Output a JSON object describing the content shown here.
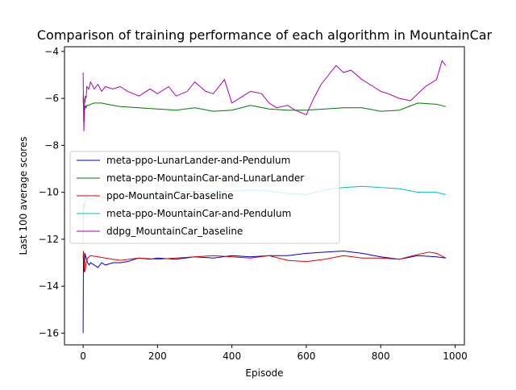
{
  "chart_data": {
    "type": "line",
    "title": "Comparison of training performance of each algorithm in MountainCar",
    "xlabel": "Episode",
    "ylabel": "Last 100 average scores",
    "xlim": [
      -50,
      1025
    ],
    "ylim": [
      -16.5,
      -3.8
    ],
    "xticks": [
      0,
      200,
      400,
      600,
      800,
      1000
    ],
    "yticks": [
      -16,
      -14,
      -12,
      -10,
      -8,
      -6,
      -4
    ],
    "grid": false,
    "legend_position": "center-left",
    "series": [
      {
        "name": "meta-ppo-LunarLander-and-Pendulum",
        "color": "#0000cc",
        "x": [
          0,
          1,
          2,
          3,
          5,
          8,
          12,
          16,
          20,
          30,
          40,
          50,
          60,
          80,
          100,
          120,
          150,
          180,
          200,
          250,
          300,
          350,
          400,
          450,
          500,
          550,
          600,
          650,
          700,
          750,
          800,
          850,
          900,
          950,
          975
        ],
        "y": [
          -16.0,
          -12.6,
          -12.8,
          -13.4,
          -12.6,
          -12.8,
          -13.0,
          -13.1,
          -13.0,
          -13.1,
          -13.2,
          -13.0,
          -13.1,
          -13.0,
          -13.0,
          -12.95,
          -12.8,
          -12.85,
          -12.8,
          -12.85,
          -12.75,
          -12.8,
          -12.7,
          -12.75,
          -12.7,
          -12.7,
          -12.6,
          -12.55,
          -12.5,
          -12.6,
          -12.75,
          -12.85,
          -12.7,
          -12.75,
          -12.8
        ]
      },
      {
        "name": "meta-ppo-MountainCar-and-LunarLander",
        "color": "#007700",
        "x": [
          0,
          1,
          2,
          3,
          4,
          6,
          8,
          10,
          15,
          20,
          30,
          50,
          80,
          100,
          150,
          200,
          250,
          300,
          350,
          400,
          450,
          500,
          550,
          600,
          650,
          700,
          750,
          800,
          850,
          900,
          950,
          975
        ],
        "y": [
          -5.9,
          -6.4,
          -6.6,
          -7.0,
          -6.5,
          -6.3,
          -6.4,
          -6.3,
          -6.3,
          -6.25,
          -6.2,
          -6.2,
          -6.3,
          -6.35,
          -6.4,
          -6.45,
          -6.5,
          -6.4,
          -6.55,
          -6.5,
          -6.3,
          -6.45,
          -6.5,
          -6.5,
          -6.45,
          -6.4,
          -6.4,
          -6.55,
          -6.5,
          -6.2,
          -6.25,
          -6.35
        ]
      },
      {
        "name": "ppo-MountainCar-baseline",
        "color": "#dd0000",
        "x": [
          0,
          1,
          2,
          3,
          4,
          6,
          8,
          12,
          20,
          40,
          60,
          80,
          100,
          150,
          200,
          250,
          300,
          350,
          400,
          450,
          500,
          550,
          600,
          650,
          700,
          750,
          800,
          850,
          900,
          930,
          950,
          975
        ],
        "y": [
          -12.8,
          -12.5,
          -12.6,
          -13.2,
          -13.4,
          -13.3,
          -13.0,
          -12.8,
          -12.7,
          -12.75,
          -12.8,
          -12.85,
          -12.9,
          -12.8,
          -12.85,
          -12.8,
          -12.75,
          -12.7,
          -12.75,
          -12.8,
          -12.7,
          -12.9,
          -12.95,
          -12.85,
          -12.7,
          -12.8,
          -12.8,
          -12.85,
          -12.65,
          -12.55,
          -12.6,
          -12.8
        ]
      },
      {
        "name": "meta-ppo-MountainCar-and-Pendulum",
        "color": "#00bbcc",
        "x": [
          0,
          1,
          2,
          3,
          5,
          10,
          20,
          40,
          60,
          80,
          100,
          150,
          200,
          250,
          300,
          350,
          400,
          450,
          500,
          550,
          600,
          650,
          700,
          750,
          800,
          850,
          900,
          950,
          975
        ],
        "y": [
          -12.2,
          -10.8,
          -10.5,
          -10.7,
          -10.3,
          -10.2,
          -10.3,
          -10.2,
          -10.25,
          -10.2,
          -10.1,
          -10.1,
          -10.05,
          -10.0,
          -9.95,
          -10.0,
          -9.95,
          -9.9,
          -9.95,
          -10.05,
          -10.1,
          -9.9,
          -9.8,
          -9.75,
          -9.8,
          -9.85,
          -10.0,
          -10.0,
          -10.1
        ]
      },
      {
        "name": "ddpg_MountainCar_baseline",
        "color": "#aa00aa",
        "x": [
          0,
          1,
          2,
          3,
          4,
          5,
          6,
          8,
          10,
          15,
          20,
          30,
          40,
          50,
          60,
          80,
          100,
          120,
          150,
          180,
          200,
          230,
          250,
          280,
          300,
          330,
          350,
          380,
          400,
          430,
          450,
          480,
          500,
          520,
          550,
          570,
          600,
          620,
          640,
          660,
          680,
          700,
          720,
          750,
          780,
          800,
          820,
          850,
          880,
          900,
          920,
          950,
          965,
          975
        ],
        "y": [
          -4.9,
          -6.2,
          -7.4,
          -6.6,
          -6.0,
          -6.2,
          -5.9,
          -6.0,
          -5.5,
          -5.6,
          -5.3,
          -5.6,
          -5.4,
          -5.7,
          -5.5,
          -5.6,
          -5.5,
          -5.7,
          -5.9,
          -5.6,
          -5.8,
          -5.5,
          -5.9,
          -5.7,
          -5.3,
          -5.7,
          -5.8,
          -5.2,
          -6.2,
          -5.9,
          -5.7,
          -5.8,
          -6.2,
          -6.4,
          -6.3,
          -6.5,
          -6.7,
          -6.0,
          -5.4,
          -5.0,
          -4.6,
          -4.9,
          -4.8,
          -5.2,
          -5.5,
          -5.7,
          -5.8,
          -6.0,
          -6.1,
          -5.8,
          -5.5,
          -5.2,
          -4.4,
          -4.6
        ]
      }
    ]
  }
}
